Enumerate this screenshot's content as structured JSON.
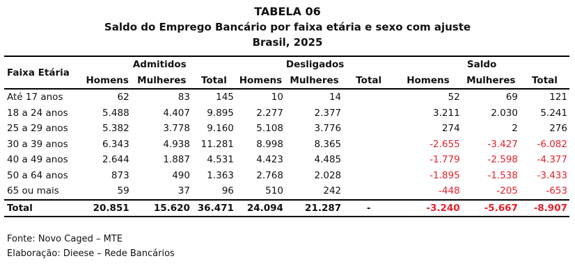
{
  "title": {
    "line1": "TABELA 06",
    "line2": "Saldo do Emprego Bancário por faixa etária e sexo com ajuste",
    "line3": "Brasil, 2025"
  },
  "headers": {
    "age": "Faixa Etária",
    "groups": [
      "Admitidos",
      "Desligados",
      "Saldo"
    ],
    "sub": [
      "Homens",
      "Mulheres",
      "Total",
      "Homens",
      "Mulheres",
      "Total",
      "Homens",
      "Mulheres",
      "Total"
    ]
  },
  "rows": [
    {
      "label": "Até 17 anos",
      "values": [
        "62",
        "83",
        "145",
        "10",
        "14",
        "",
        "52",
        "69",
        "121"
      ]
    },
    {
      "label": "18 a 24 anos",
      "values": [
        "5.488",
        "4.407",
        "9.895",
        "2.277",
        "2.377",
        "",
        "3.211",
        "2.030",
        "5.241"
      ]
    },
    {
      "label": "25 a 29 anos",
      "values": [
        "5.382",
        "3.778",
        "9.160",
        "5.108",
        "3.776",
        "",
        "274",
        "2",
        "276"
      ]
    },
    {
      "label": "30 a 39 anos",
      "values": [
        "6.343",
        "4.938",
        "11.281",
        "8.998",
        "8.365",
        "",
        "-2.655",
        "-3.427",
        "-6.082"
      ]
    },
    {
      "label": "40 a 49 anos",
      "values": [
        "2.644",
        "1.887",
        "4.531",
        "4.423",
        "4.485",
        "",
        "-1.779",
        "-2.598",
        "-4.377"
      ]
    },
    {
      "label": "50 a 64 anos",
      "values": [
        "873",
        "490",
        "1.363",
        "2.768",
        "2.028",
        "",
        "-1.895",
        "-1.538",
        "-3.433"
      ]
    },
    {
      "label": "65 ou mais",
      "values": [
        "59",
        "37",
        "96",
        "510",
        "242",
        "",
        "-448",
        "-205",
        "-653"
      ]
    }
  ],
  "total": {
    "label": "Total",
    "values": [
      "20.851",
      "15.620",
      "36.471",
      "24.094",
      "21.287",
      "-",
      "-3.240",
      "-5.667",
      "-8.907"
    ]
  },
  "notes": {
    "source": "Fonte: Novo Caged – MTE",
    "prepared": "Elaboração: Dieese – Rede Bancários"
  },
  "colors": {
    "negative": "#e4202a"
  }
}
